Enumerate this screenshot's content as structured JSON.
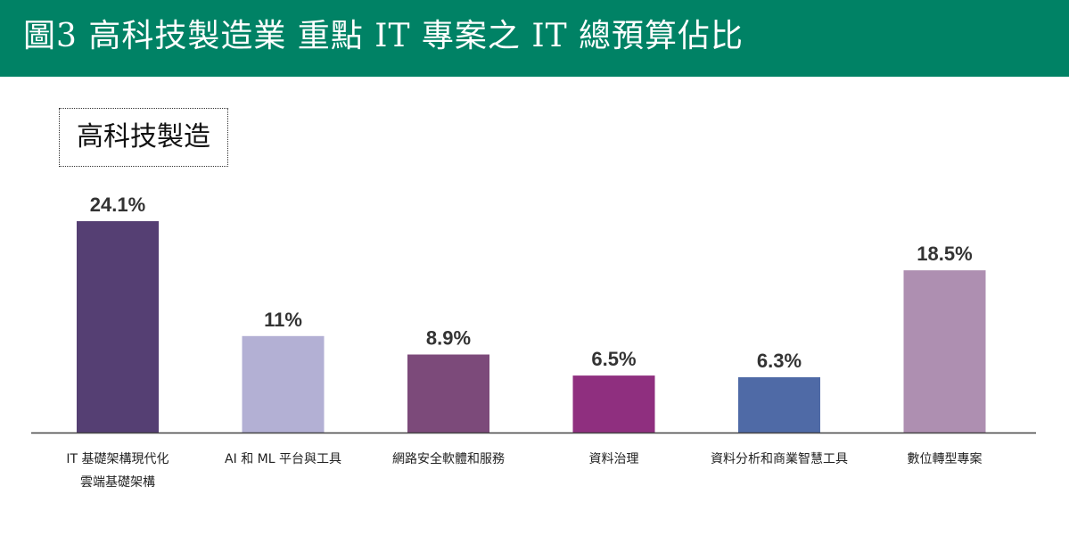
{
  "header": {
    "title": "圖3 高科技製造業 重點 IT 專案之 IT 總預算佔比"
  },
  "colors": {
    "header_bg": "#008265",
    "axis": "#444444"
  },
  "chart_data": {
    "type": "bar",
    "title": "高科技製造",
    "categories": [
      [
        "IT 基礎架構現代化",
        "雲端基礎架構"
      ],
      [
        "AI 和 ML 平台與工具"
      ],
      [
        "網路安全軟體和服務"
      ],
      [
        "資料治理"
      ],
      [
        "資料分析和商業智慧工具"
      ],
      [
        "數位轉型專案"
      ]
    ],
    "values": [
      24.1,
      11,
      8.9,
      6.5,
      6.3,
      18.5
    ],
    "value_labels": [
      "24.1%",
      "11%",
      "8.9%",
      "6.5%",
      "6.3%",
      "18.5%"
    ],
    "bar_colors": [
      "#553f73",
      "#b3b0d4",
      "#7c4a7a",
      "#8f2f7f",
      "#4f6aa6",
      "#ae8fb1"
    ],
    "unit": "%",
    "ylim": [
      0,
      24.1
    ],
    "grid": false,
    "legend": "none"
  }
}
